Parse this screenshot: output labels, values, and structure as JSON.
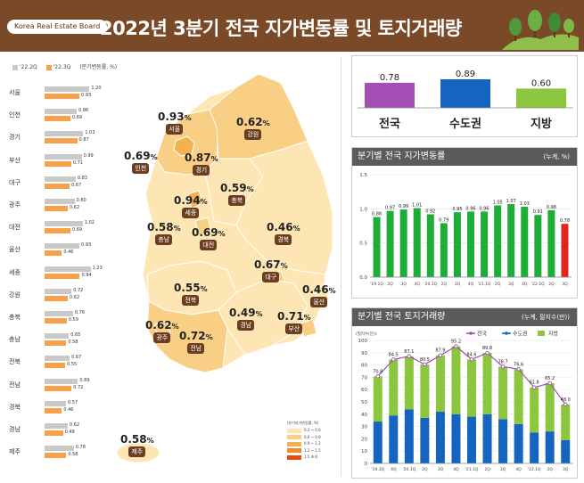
{
  "header": {
    "brand": "Korea Real Estate Board",
    "title": "2022년 3분기 전국 지가변동률 및 토지거래량"
  },
  "legend_top": {
    "prev": "'22.2Q",
    "curr": "'22.3Q",
    "unit": "(분기변동률, %)"
  },
  "colors": {
    "header_bg": "#7a4a28",
    "bar_prev": "#c9c9c9",
    "bar_curr": "#f7a24b",
    "green": "#1fad3a",
    "red": "#e3241b",
    "purple": "#a44fb6",
    "blue": "#1565c0",
    "light_green": "#8cc63f"
  },
  "regions": [
    {
      "name": "서울",
      "prev": "1.20",
      "curr": "0.93"
    },
    {
      "name": "인천",
      "prev": "0.86",
      "curr": "0.69"
    },
    {
      "name": "경기",
      "prev": "1.03",
      "curr": "0.87"
    },
    {
      "name": "부산",
      "prev": "0.99",
      "curr": "0.71"
    },
    {
      "name": "대구",
      "prev": "0.83",
      "curr": "0.67"
    },
    {
      "name": "광주",
      "prev": "0.80",
      "curr": "0.62"
    },
    {
      "name": "대전",
      "prev": "1.02",
      "curr": "0.69"
    },
    {
      "name": "울산",
      "prev": "0.93",
      "curr": "0.46"
    },
    {
      "name": "세종",
      "prev": "1.23",
      "curr": "0.94"
    },
    {
      "name": "강원",
      "prev": "0.72",
      "curr": "0.62"
    },
    {
      "name": "충북",
      "prev": "0.76",
      "curr": "0.59"
    },
    {
      "name": "충남",
      "prev": "0.65",
      "curr": "0.58"
    },
    {
      "name": "전북",
      "prev": "0.67",
      "curr": "0.55"
    },
    {
      "name": "전남",
      "prev": "0.89",
      "curr": "0.72"
    },
    {
      "name": "경북",
      "prev": "0.57",
      "curr": "0.46"
    },
    {
      "name": "경남",
      "prev": "0.62",
      "curr": "0.49"
    },
    {
      "name": "제주",
      "prev": "0.78",
      "curr": "0.58"
    }
  ],
  "map_labels": [
    {
      "id": "seoul",
      "pct": "0.93",
      "name": "서울"
    },
    {
      "id": "gangwon",
      "pct": "0.62",
      "name": "강원"
    },
    {
      "id": "incheon",
      "pct": "0.69",
      "name": "인천"
    },
    {
      "id": "gyeonggi",
      "pct": "0.87",
      "name": "경기"
    },
    {
      "id": "sejong",
      "pct": "0.94",
      "name": "세종"
    },
    {
      "id": "chungbuk",
      "pct": "0.59",
      "name": "충북"
    },
    {
      "id": "chungnam",
      "pct": "0.58",
      "name": "충남"
    },
    {
      "id": "daejeon",
      "pct": "0.69",
      "name": "대전"
    },
    {
      "id": "gyeongbuk",
      "pct": "0.46",
      "name": "경북"
    },
    {
      "id": "daegu",
      "pct": "0.67",
      "name": "대구"
    },
    {
      "id": "jeonbuk",
      "pct": "0.55",
      "name": "전북"
    },
    {
      "id": "ulsan",
      "pct": "0.46",
      "name": "울산"
    },
    {
      "id": "gwangju",
      "pct": "0.62",
      "name": "광주"
    },
    {
      "id": "jeonnam",
      "pct": "0.72",
      "name": "전남"
    },
    {
      "id": "gyeongnam",
      "pct": "0.49",
      "name": "경남"
    },
    {
      "id": "busan",
      "pct": "0.71",
      "name": "부산"
    },
    {
      "id": "jeju",
      "pct": "0.58",
      "name": "제주"
    }
  ],
  "map_legend": {
    "title": "(분기지가변동률, %)",
    "items": [
      {
        "label": "0.3 ~ 0.6",
        "color": "#fde6b4"
      },
      {
        "label": "0.6 ~ 0.9",
        "color": "#f9cf86"
      },
      {
        "label": "0.9 ~ 1.2",
        "color": "#f5b04f"
      },
      {
        "label": "1.2 ~ 1.5",
        "color": "#f08a2a"
      },
      {
        "label": "1.5 초과",
        "color": "#e84a12"
      }
    ]
  },
  "panel1": {
    "items": [
      {
        "label": "전국",
        "value": "0.78"
      },
      {
        "label": "수도권",
        "value": "0.89"
      },
      {
        "label": "지방",
        "value": "0.60"
      }
    ]
  },
  "panel2": {
    "title": "분기별 전국 지가변동률",
    "unit": "(누계, %)"
  },
  "panel3": {
    "title": "분기별 전국 토지거래량",
    "unit": "(누계, 필지수(만))",
    "axis_unit": "(필지수(만))"
  },
  "chart_data": [
    {
      "type": "bar",
      "title": "",
      "categories": [
        "전국",
        "수도권",
        "지방"
      ],
      "values": [
        0.78,
        0.89,
        0.6
      ],
      "ylim": [
        0,
        1
      ]
    },
    {
      "type": "bar",
      "title": "분기별 전국 지가변동률",
      "unit": "(누계, %)",
      "categories": [
        "'19.1Q",
        "2Q",
        "3Q",
        "4Q",
        "'20.1Q",
        "2Q",
        "3Q",
        "4Q",
        "'21.1Q",
        "2Q",
        "3Q",
        "4Q",
        "'22.1Q",
        "2Q",
        "3Q"
      ],
      "values": [
        0.88,
        0.97,
        0.99,
        1.01,
        0.92,
        0.79,
        0.95,
        0.96,
        0.96,
        1.05,
        1.07,
        1.03,
        0.91,
        0.98,
        0.78
      ],
      "ylim": [
        0,
        1.5
      ],
      "yticks": [
        "0.0",
        "0.5",
        "1.0",
        "1.5"
      ],
      "highlight_last": true
    },
    {
      "type": "bar",
      "stacked": true,
      "title": "분기별 전국 토지거래량",
      "unit": "(누계, 필지수(만))",
      "categories": [
        "'19.3Q",
        "4Q",
        "'20.1Q",
        "2Q",
        "3Q",
        "4Q",
        "'21.1Q",
        "2Q",
        "3Q",
        "4Q",
        "'22.1Q",
        "2Q",
        "3Q"
      ],
      "ylim": [
        0,
        100
      ],
      "yticks": [
        "0",
        "10",
        "20",
        "30",
        "40",
        "50",
        "60",
        "70",
        "80",
        "90",
        "100"
      ],
      "series": [
        {
          "name": "전국",
          "type": "line",
          "values": [
            70.8,
            84.5,
            87.1,
            80.5,
            87.9,
            95.2,
            84.6,
            89.8,
            78.7,
            76.6,
            61.8,
            65.2,
            48.0
          ],
          "labels": [
            "70.8",
            "84.5",
            "87.1",
            "80.5",
            "87.9",
            "95.2",
            "84.6",
            "89.8",
            "78.7",
            "76.6",
            "61.8",
            "65.2",
            "48.0"
          ]
        },
        {
          "name": "수도권",
          "values": [
            34,
            39,
            44,
            37,
            42,
            40,
            38,
            40,
            36,
            32,
            25,
            26,
            19
          ]
        },
        {
          "name": "지방",
          "values": [
            36.8,
            45.5,
            43.1,
            43.5,
            45.9,
            55.2,
            46.6,
            49.8,
            42.7,
            44.6,
            36.8,
            39.2,
            29.0
          ]
        }
      ],
      "legend": "top-right"
    }
  ]
}
